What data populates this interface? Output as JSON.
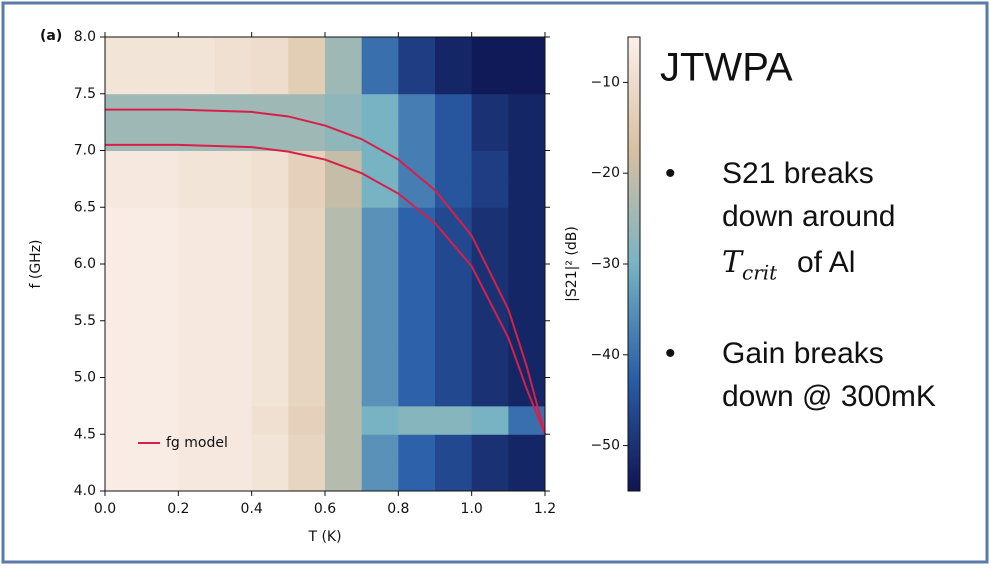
{
  "chart_data": {
    "type": "heatmap",
    "panel_label": "(a)",
    "xlabel": "T (K)",
    "ylabel": "f (GHz)",
    "colorbar_label": "|S21|² (dB)",
    "xbins": [
      0,
      0.1,
      0.2,
      0.3,
      0.4,
      0.5,
      0.6,
      0.7,
      0.8,
      0.9,
      1,
      1.1,
      1.2
    ],
    "ybins": [
      4,
      4.25,
      4.5,
      4.75,
      5,
      5.25,
      5.5,
      5.75,
      6,
      6.25,
      6.5,
      6.75,
      7,
      7.25,
      7.5,
      7.75,
      8
    ],
    "z": [
      [
        -6,
        -6,
        -7,
        -7,
        -8,
        -12,
        -22,
        -35,
        -42,
        -46,
        -50,
        -52
      ],
      [
        -6,
        -6,
        -7,
        -7,
        -8,
        -12,
        -22,
        -35,
        -42,
        -46,
        -50,
        -52
      ],
      [
        -6,
        -6,
        -7,
        -7,
        -9,
        -13,
        -22,
        -30,
        -28,
        -28,
        -30,
        -40
      ],
      [
        -6,
        -6,
        -7,
        -7,
        -8,
        -12,
        -22,
        -35,
        -42,
        -46,
        -50,
        -52
      ],
      [
        -6,
        -6,
        -7,
        -7,
        -8,
        -12,
        -22,
        -35,
        -42,
        -46,
        -50,
        -52
      ],
      [
        -6,
        -6,
        -7,
        -7,
        -8,
        -12,
        -22,
        -35,
        -42,
        -46,
        -50,
        -52
      ],
      [
        -6,
        -6,
        -7,
        -7,
        -8,
        -12,
        -22,
        -35,
        -42,
        -46,
        -50,
        -52
      ],
      [
        -6,
        -6,
        -7,
        -7,
        -8,
        -12,
        -22,
        -35,
        -42,
        -46,
        -50,
        -52
      ],
      [
        -6,
        -6,
        -7,
        -7,
        -8,
        -12,
        -22,
        -35,
        -42,
        -46,
        -50,
        -52
      ],
      [
        -6,
        -6,
        -7,
        -7,
        -8,
        -12,
        -22,
        -35,
        -42,
        -46,
        -50,
        -52
      ],
      [
        -7,
        -7,
        -8,
        -8,
        -9,
        -13,
        -20,
        -30,
        -38,
        -44,
        -48,
        -52
      ],
      [
        -7,
        -7,
        -8,
        -8,
        -9,
        -13,
        -20,
        -30,
        -38,
        -44,
        -48,
        -52
      ],
      [
        -25,
        -25,
        -25,
        -25,
        -25,
        -25,
        -27,
        -30,
        -38,
        -44,
        -50,
        -52
      ],
      [
        -25,
        -25,
        -25,
        -25,
        -25,
        -25,
        -27,
        -30,
        -38,
        -44,
        -50,
        -52
      ],
      [
        -8,
        -8,
        -8,
        -9,
        -10,
        -14,
        -25,
        -40,
        -48,
        -52,
        -54,
        -54
      ],
      [
        -8,
        -8,
        -8,
        -9,
        -10,
        -14,
        -25,
        -40,
        -48,
        -52,
        -54,
        -54
      ]
    ],
    "colormap": [
      "#0f1452",
      "#2a5ea8",
      "#78b3c4",
      "#d8bfa0",
      "#fcf0ea"
    ],
    "zlim": [
      -55,
      -5
    ],
    "zticks": [
      {
        "value": -10,
        "label": "−10"
      },
      {
        "value": -20,
        "label": "−20"
      },
      {
        "value": -30,
        "label": "−30"
      },
      {
        "value": -40,
        "label": "−40"
      },
      {
        "value": -50,
        "label": "−50"
      }
    ],
    "xlim": [
      0,
      1.2
    ],
    "ylim": [
      4,
      8
    ],
    "xticks": [
      {
        "value": 0,
        "label": "0.0"
      },
      0.2,
      0.4,
      0.6,
      0.8,
      {
        "value": 1,
        "label": "1.0"
      },
      1.2
    ],
    "yticks": [
      {
        "value": 4,
        "label": "4.0"
      },
      4.5,
      {
        "value": 5,
        "label": "5.0"
      },
      5.5,
      {
        "value": 6,
        "label": "6.0"
      },
      6.5,
      {
        "value": 7,
        "label": "7.0"
      },
      7.5,
      {
        "value": 8,
        "label": "8.0"
      }
    ],
    "model": {
      "name": "fg model",
      "color": "#d6204a",
      "x": [
        0,
        0.2,
        0.4,
        0.5,
        0.6,
        0.7,
        0.8,
        0.9,
        1,
        1.1,
        1.15,
        1.2
      ],
      "curves": [
        {
          "values": [
            7.36,
            7.36,
            7.34,
            7.3,
            7.22,
            7.1,
            6.92,
            6.65,
            6.25,
            5.6,
            5.1,
            4.5
          ]
        },
        {
          "values": [
            7.05,
            7.05,
            7.03,
            6.99,
            6.92,
            6.8,
            6.62,
            6.36,
            5.98,
            5.35,
            4.9,
            4.5
          ]
        }
      ]
    }
  },
  "slide": {
    "title": "JTWPA",
    "bullet_mark": "•",
    "bullet1": {
      "lines": [
        "S21 breaks",
        "down around"
      ],
      "math": "T",
      "math_sub": "crit",
      "tail": "of Al"
    },
    "bullet2": {
      "lines": [
        "Gain breaks",
        "down @ 300mK"
      ]
    }
  }
}
